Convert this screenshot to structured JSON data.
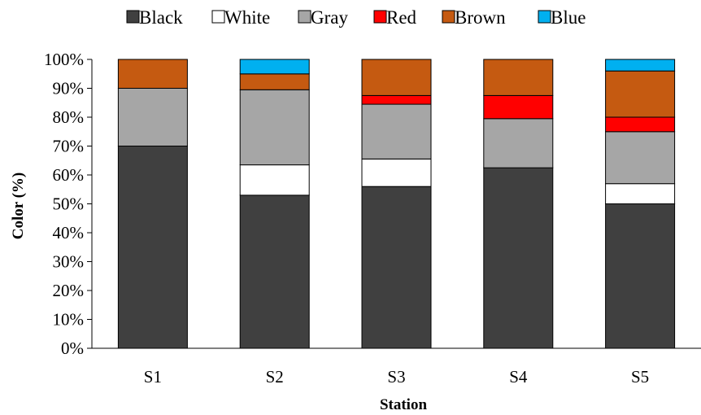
{
  "chart_data": {
    "type": "bar",
    "stacked": true,
    "categories": [
      "S1",
      "S2",
      "S3",
      "S4",
      "S5"
    ],
    "series": [
      {
        "name": "Black",
        "color": "#404040",
        "values": [
          70,
          53,
          56,
          62.5,
          50
        ]
      },
      {
        "name": "White",
        "color": "#ffffff",
        "values": [
          0,
          10.5,
          9.5,
          0,
          7
        ]
      },
      {
        "name": "Gray",
        "color": "#a6a6a6",
        "values": [
          20,
          26,
          19,
          17,
          18
        ]
      },
      {
        "name": "Red",
        "color": "#ff0000",
        "values": [
          0,
          0,
          3,
          8,
          5
        ]
      },
      {
        "name": "Brown",
        "color": "#c55a11",
        "values": [
          10,
          5.5,
          12.5,
          12.5,
          16
        ]
      },
      {
        "name": "Blue",
        "color": "#00b0f0",
        "values": [
          0,
          5,
          0,
          0,
          4
        ]
      }
    ],
    "xlabel": "Station",
    "ylabel": "Color (%)",
    "ylim": [
      0,
      100
    ],
    "yticks": [
      "0%",
      "10%",
      "20%",
      "30%",
      "40%",
      "50%",
      "60%",
      "70%",
      "80%",
      "90%",
      "100%"
    ],
    "grid": false,
    "legend_position": "top"
  }
}
